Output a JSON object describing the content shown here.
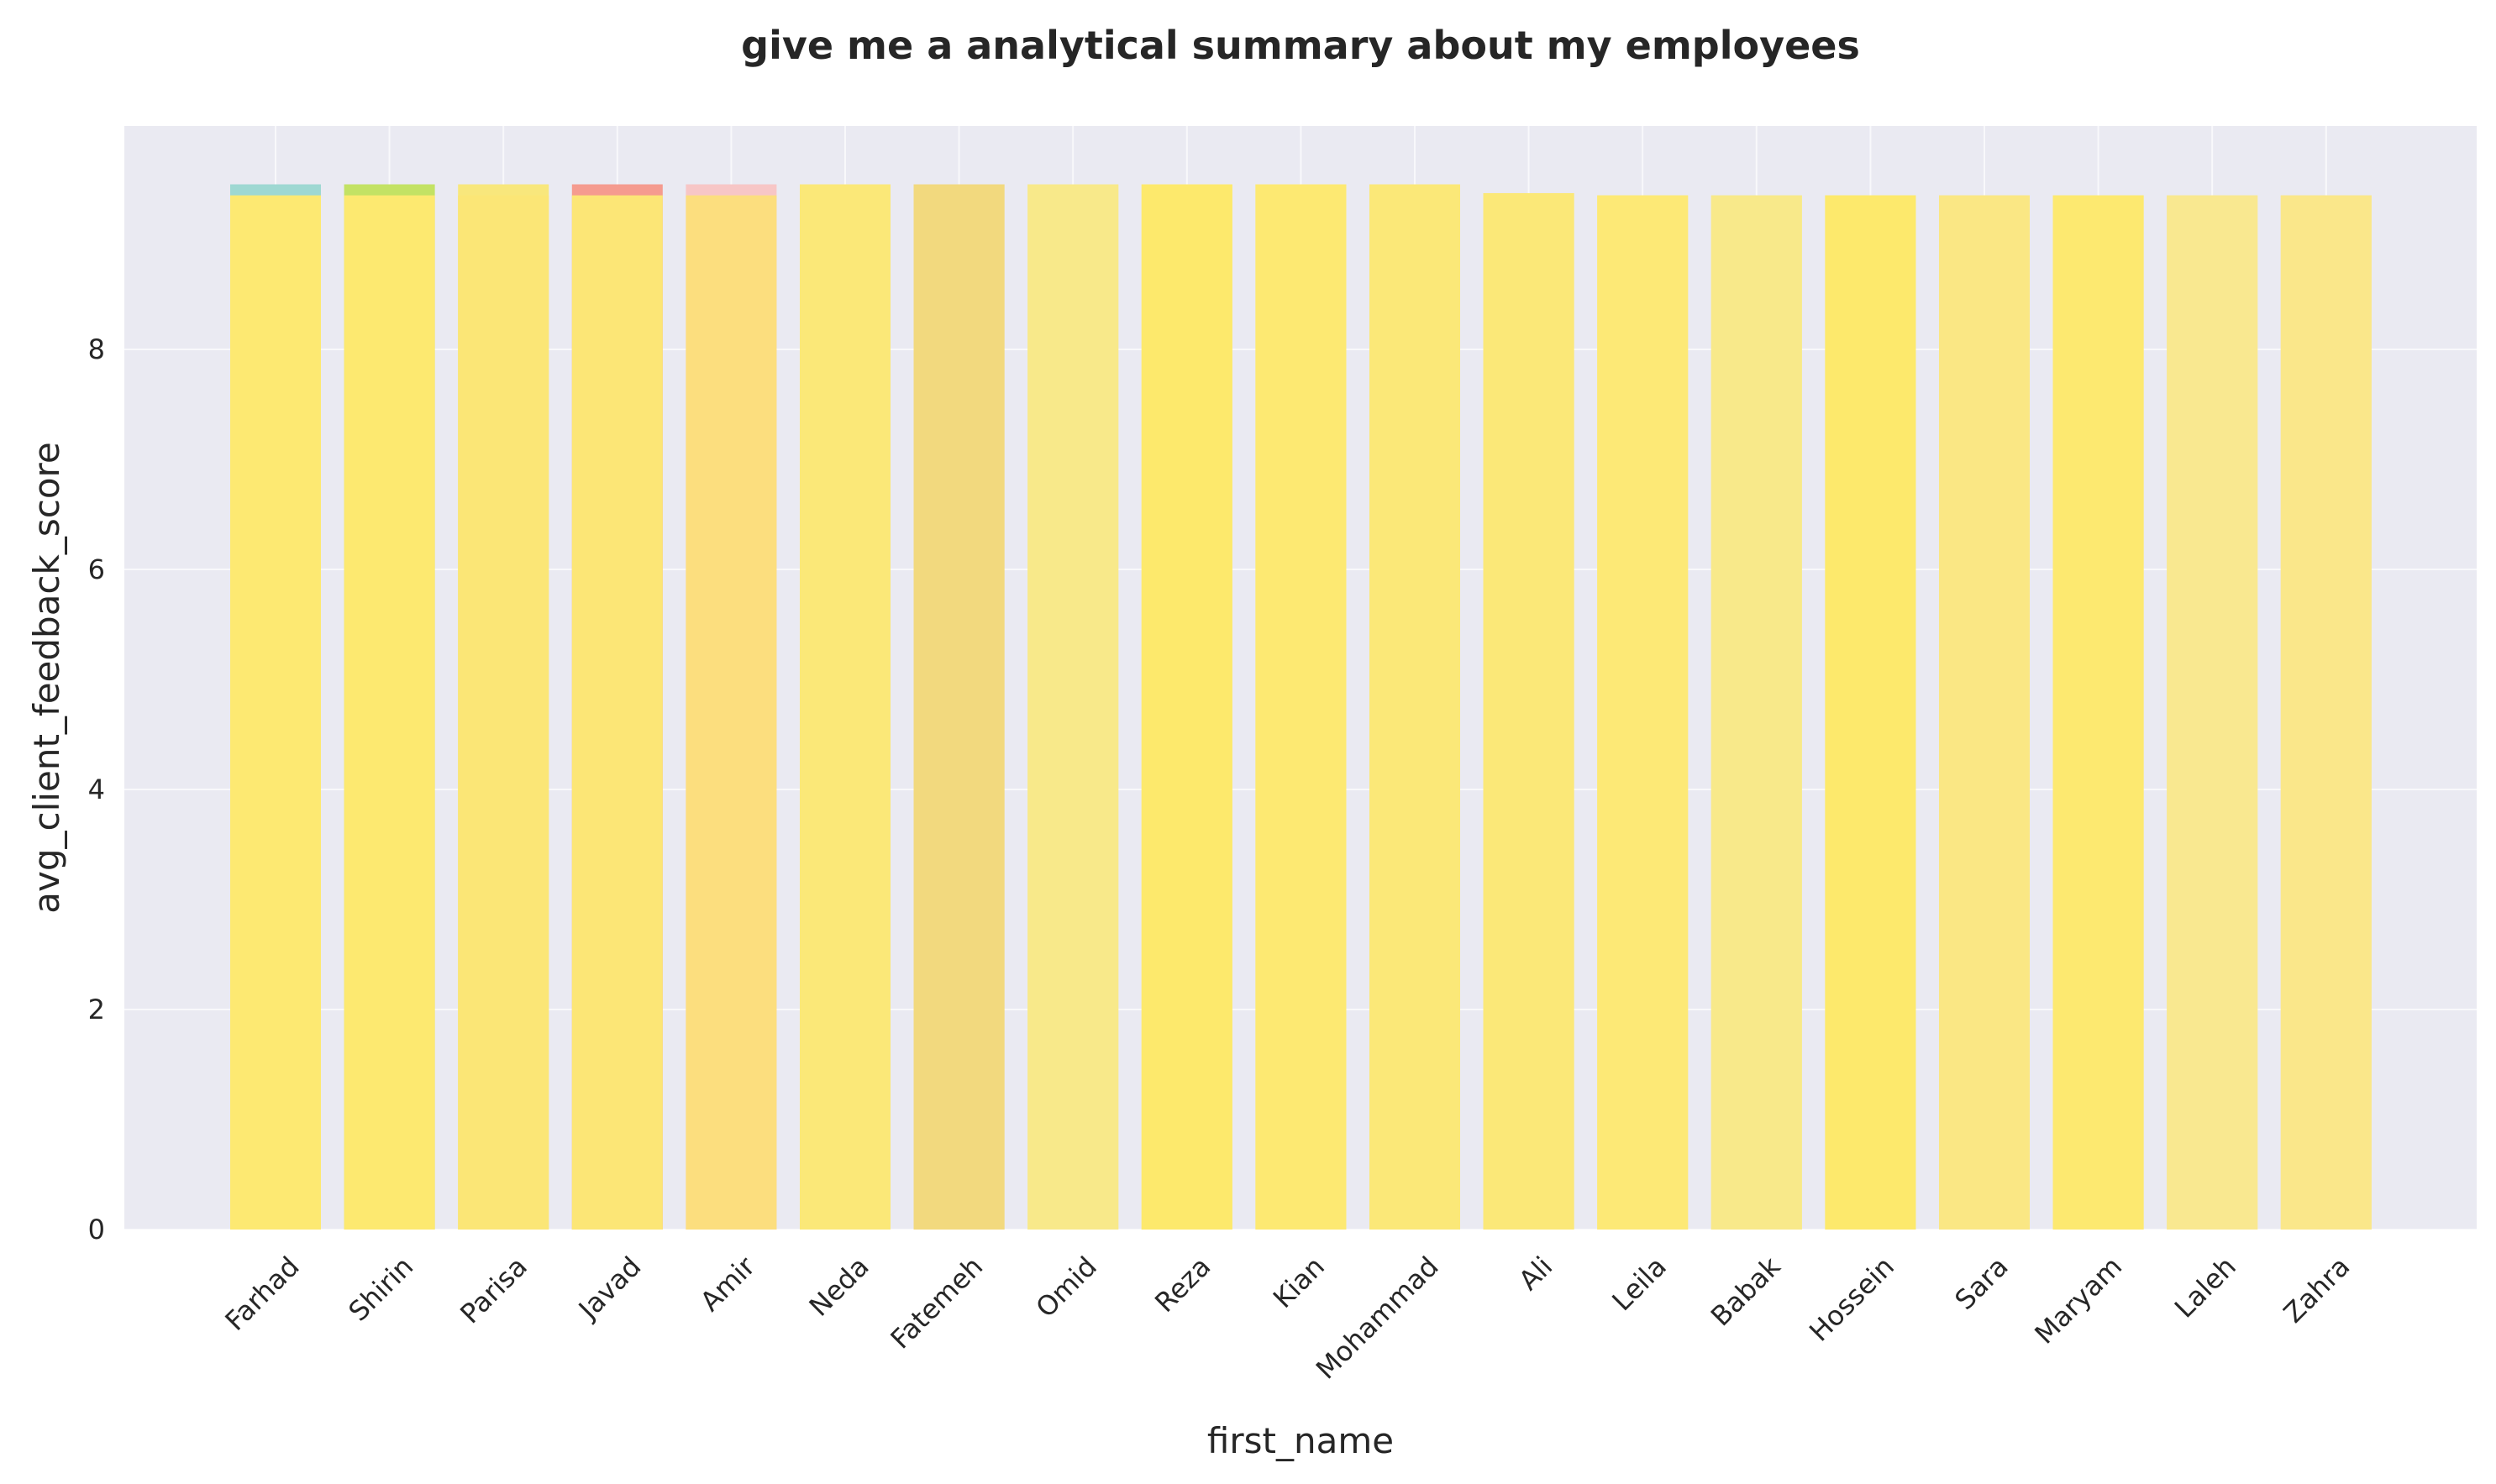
{
  "chart_data": {
    "type": "bar",
    "title": "give me a analytical summary about my employees",
    "xlabel": "first_name",
    "ylabel": "avg_client_feedback_score",
    "ylim": [
      0,
      9.5
    ],
    "yticks": [
      0,
      2,
      4,
      6,
      8
    ],
    "grid": true,
    "background": "#eaeaf2",
    "categories": [
      "Farhad",
      "Shirin",
      "Parisa",
      "Javad",
      "Amir",
      "Neda",
      "Fatemeh",
      "Omid",
      "Reza",
      "Kian",
      "Mohammad",
      "Ali",
      "Leila",
      "Babak",
      "Hossein",
      "Sara",
      "Maryam",
      "Laleh",
      "Zahra"
    ],
    "series": [
      {
        "values": [
          9.5,
          9.5,
          9.5,
          9.5,
          9.5,
          9.5,
          9.5,
          9.5,
          9.5,
          9.5,
          9.5,
          9.42,
          9.4,
          9.4,
          9.4,
          9.4,
          9.4,
          9.4,
          9.4
        ],
        "colors": [
          "#9ed8d2",
          "#c3e264",
          "#f8e77c",
          "#f59b8f",
          "#f7c6c6",
          "#fbe877",
          "#f2d97e",
          "#f8e98a",
          "#fde96c",
          "#fde972",
          "#fbe878",
          "#fbe878",
          "#fde976",
          "#f8e98a",
          "#fde96c",
          "#fae784",
          "#fde970",
          "#f9e890",
          "#fae78a"
        ]
      },
      {
        "values": [
          9.4,
          9.4,
          9.4,
          9.4,
          9.4,
          9.5,
          9.5,
          9.5,
          9.5,
          9.5,
          9.5,
          9.42,
          9.4,
          9.4,
          9.4,
          9.4,
          9.4,
          9.4,
          9.4
        ],
        "colors": [
          "#fde972",
          "#fde970",
          "#fbe676",
          "#fce676",
          "#fcde7e",
          "#fbe878",
          "#f2d97e",
          "#f8e98a",
          "#fde96c",
          "#fde972",
          "#fbe878",
          "#fbe878",
          "#fde976",
          "#f8e98a",
          "#fde96c",
          "#fae784",
          "#fde970",
          "#f9e890",
          "#fae78a"
        ]
      }
    ]
  }
}
